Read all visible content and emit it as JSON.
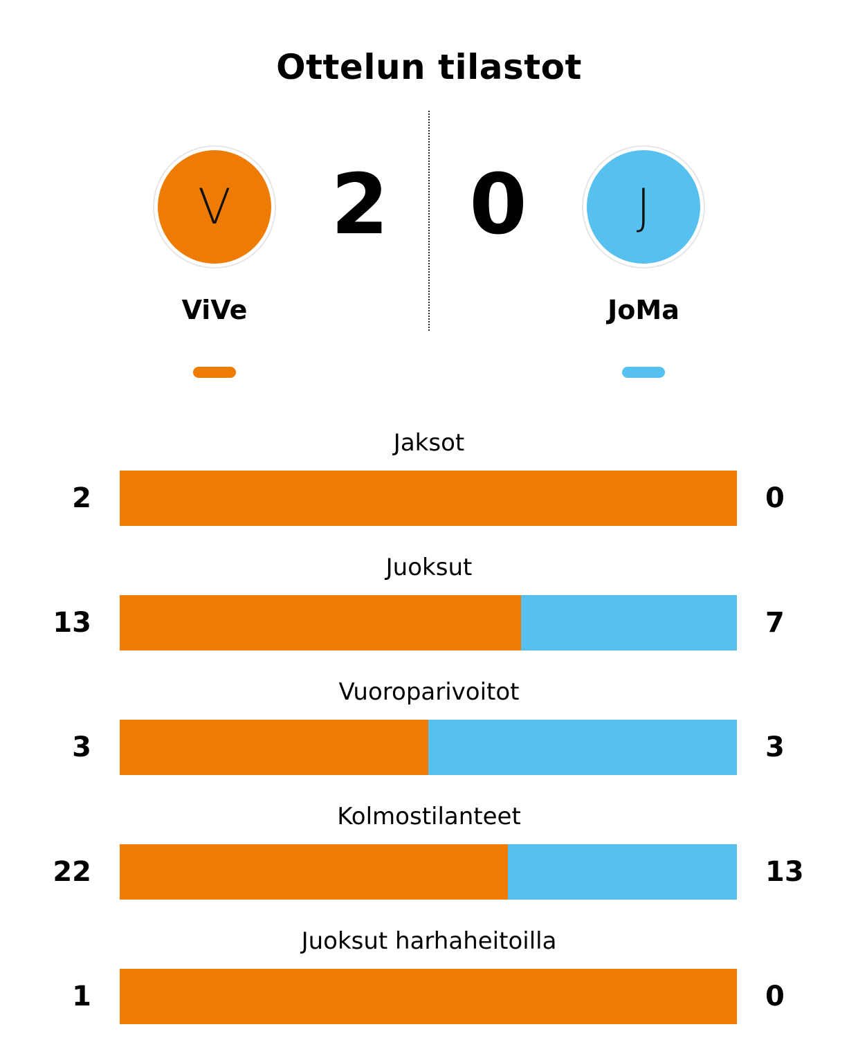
{
  "title": "Ottelun tilastot",
  "colors": {
    "home": "#ee7b03",
    "away": "#56c0ee"
  },
  "home": {
    "name": "ViVe",
    "initial": "V",
    "score": "2"
  },
  "away": {
    "name": "JoMa",
    "initial": "J",
    "score": "0"
  },
  "chart_data": {
    "type": "bar",
    "title": "Ottelun tilastot",
    "categories": [
      "Jaksot",
      "Juoksut",
      "Vuoroparivoitot",
      "Kolmostilanteet",
      "Juoksut harhaheitoilla"
    ],
    "series": [
      {
        "name": "ViVe",
        "values": [
          2,
          13,
          3,
          22,
          1
        ]
      },
      {
        "name": "JoMa",
        "values": [
          0,
          7,
          3,
          13,
          0
        ]
      }
    ],
    "stacking": "percent",
    "orientation": "horizontal",
    "grid": false
  }
}
